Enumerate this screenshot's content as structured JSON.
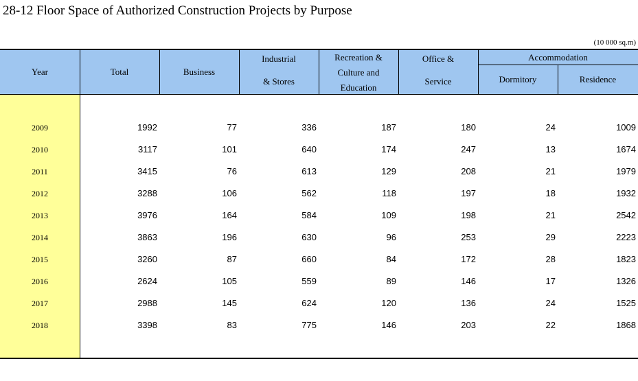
{
  "title": "28-12  Floor Space of Authorized Construction Projects by Purpose",
  "unit": "(10 000 sq.m)",
  "headers": {
    "year": "Year",
    "total": "Total",
    "business": "Business",
    "industrial_1": "Industrial",
    "industrial_2": "& Stores",
    "recreation_1": "Recreation &",
    "recreation_2": "Culture and",
    "recreation_3": "Education",
    "office_1": "Office &",
    "office_2": "Service",
    "accommodation": "Accommodation",
    "dormitory": "Dormitory",
    "residence": "Residence"
  },
  "rows": [
    {
      "year": "2009",
      "total": "1992",
      "business": "77",
      "industrial": "336",
      "recreation": "187",
      "office": "180",
      "dormitory": "24",
      "residence": "1009"
    },
    {
      "year": "2010",
      "total": "3117",
      "business": "101",
      "industrial": "640",
      "recreation": "174",
      "office": "247",
      "dormitory": "13",
      "residence": "1674"
    },
    {
      "year": "2011",
      "total": "3415",
      "business": "76",
      "industrial": "613",
      "recreation": "129",
      "office": "208",
      "dormitory": "21",
      "residence": "1979"
    },
    {
      "year": "2012",
      "total": "3288",
      "business": "106",
      "industrial": "562",
      "recreation": "118",
      "office": "197",
      "dormitory": "18",
      "residence": "1932"
    },
    {
      "year": "2013",
      "total": "3976",
      "business": "164",
      "industrial": "584",
      "recreation": "109",
      "office": "198",
      "dormitory": "21",
      "residence": "2542"
    },
    {
      "year": "2014",
      "total": "3863",
      "business": "196",
      "industrial": "630",
      "recreation": "96",
      "office": "253",
      "dormitory": "29",
      "residence": "2223"
    },
    {
      "year": "2015",
      "total": "3260",
      "business": "87",
      "industrial": "660",
      "recreation": "84",
      "office": "172",
      "dormitory": "28",
      "residence": "1823"
    },
    {
      "year": "2016",
      "total": "2624",
      "business": "105",
      "industrial": "559",
      "recreation": "89",
      "office": "146",
      "dormitory": "17",
      "residence": "1326"
    },
    {
      "year": "2017",
      "total": "2988",
      "business": "145",
      "industrial": "624",
      "recreation": "120",
      "office": "136",
      "dormitory": "24",
      "residence": "1525"
    },
    {
      "year": "2018",
      "total": "3398",
      "business": "83",
      "industrial": "775",
      "recreation": "146",
      "office": "203",
      "dormitory": "22",
      "residence": "1868"
    }
  ],
  "colors": {
    "header_bg": "#9fc6f0",
    "year_bg": "#ffff99"
  }
}
